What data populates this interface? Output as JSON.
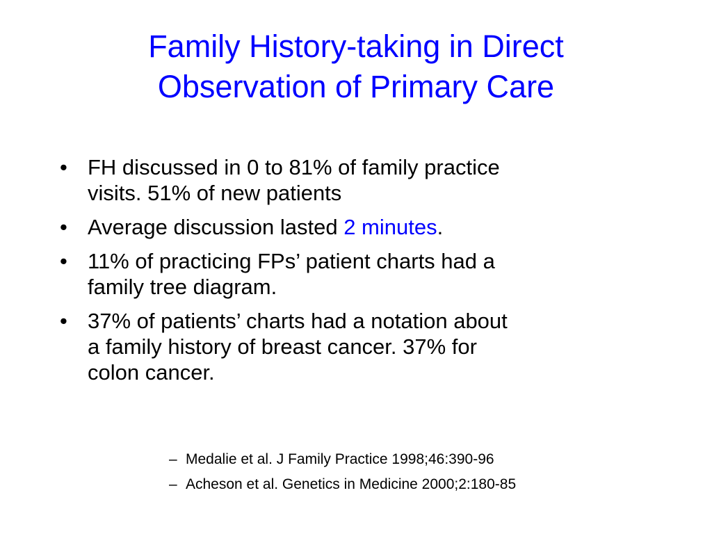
{
  "slide": {
    "title_line1": "Family History-taking in Direct",
    "title_line2": "Observation of Primary Care",
    "colors": {
      "title": "#0000ff",
      "highlight": "#0000ff",
      "text": "#000000",
      "background": "#ffffff"
    },
    "bullet_glyph": "•",
    "bullets": [
      {
        "line1": "FH discussed  in 0 to 81% of  family practice",
        "line2": "visits.  51% of new patients"
      },
      {
        "before": "Average discussion lasted ",
        "highlight": "2 minutes",
        "after": "."
      },
      {
        "line1": "11% of practicing FPs’ patient charts had a",
        "line2": "family tree diagram."
      },
      {
        "line1": "37% of  patients’ charts had a notation about",
        "line2": "a family history of breast cancer.  37% for",
        "line3": "colon cancer."
      }
    ],
    "ref_glyph": "–",
    "references": [
      "Medalie et al.  J Family Practice 1998;46:390-96",
      "Acheson et al. Genetics in Medicine 2000;2:180-85"
    ]
  }
}
